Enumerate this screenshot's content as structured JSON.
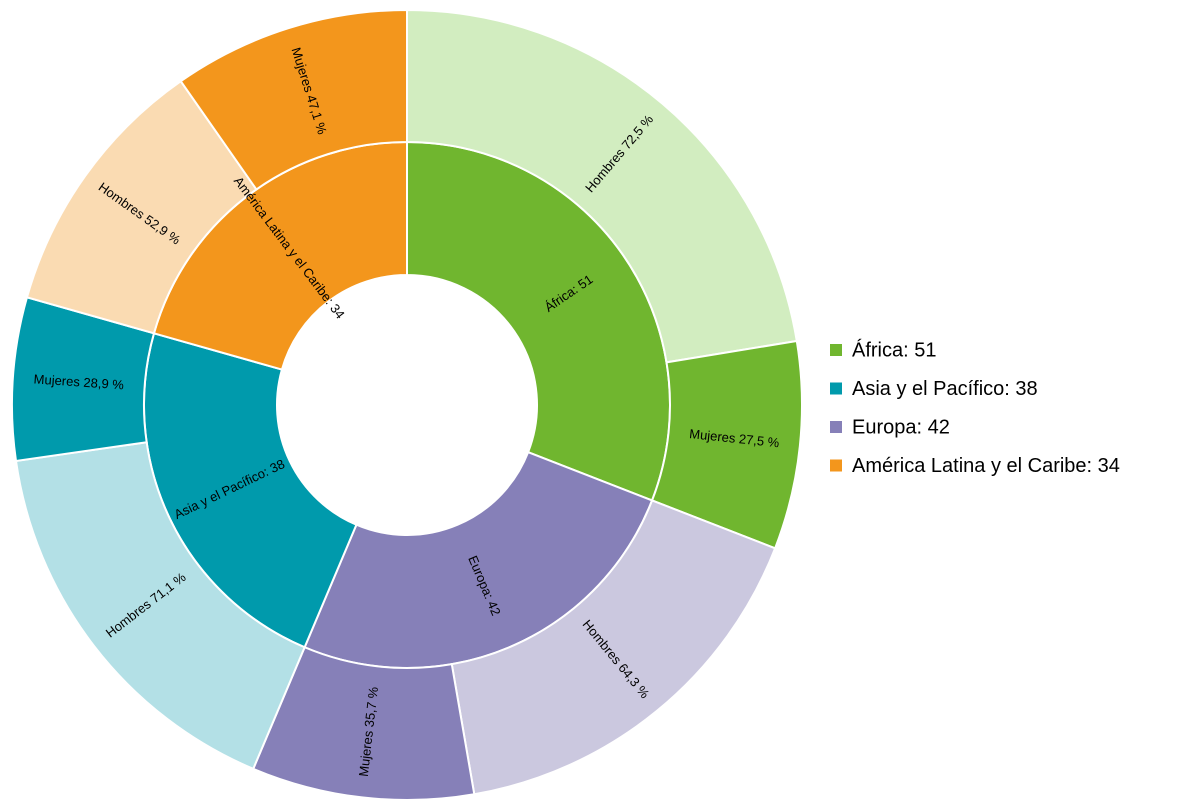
{
  "chart_data": {
    "type": "sunburst",
    "series": [
      {
        "label": "África: 51",
        "value": 51,
        "color": "#70b62f",
        "children": [
          {
            "label": "Hombres 72,5 %",
            "value": 72.5,
            "color": "#d2edc0"
          },
          {
            "label": "Mujeres 27,5 %",
            "value": 27.5,
            "color": "#70b62f"
          }
        ]
      },
      {
        "label": "Europa: 42",
        "value": 42,
        "color": "#8680b8",
        "children": [
          {
            "label": "Hombres 64,3 %",
            "value": 64.3,
            "color": "#cbc8df"
          },
          {
            "label": "Mujeres 35,7 %",
            "value": 35.7,
            "color": "#8680b8"
          }
        ]
      },
      {
        "label": "Asia y el Pacífico: 38",
        "value": 38,
        "color": "#009aac",
        "children": [
          {
            "label": "Hombres 71,1 %",
            "value": 71.1,
            "color": "#b3e0e6"
          },
          {
            "label": "Mujeres 28,9 %",
            "value": 28.9,
            "color": "#009aac"
          }
        ]
      },
      {
        "label": "América Latina y el Caribe: 34",
        "value": 34,
        "color": "#f3961c",
        "children": [
          {
            "label": "Hombres 52,9 %",
            "value": 52.9,
            "color": "#fadbb2"
          },
          {
            "label": "Mujeres 47,1 %",
            "value": 47.1,
            "color": "#f3961c"
          }
        ]
      }
    ],
    "legend": [
      {
        "label": "África: 51",
        "color": "#70b62f"
      },
      {
        "label": "Asia y el Pacífico: 38",
        "color": "#009aac"
      },
      {
        "label": "Europa: 42",
        "color": "#8680b8"
      },
      {
        "label": "América Latina y el Caribe: 34",
        "color": "#f3961c"
      }
    ]
  }
}
